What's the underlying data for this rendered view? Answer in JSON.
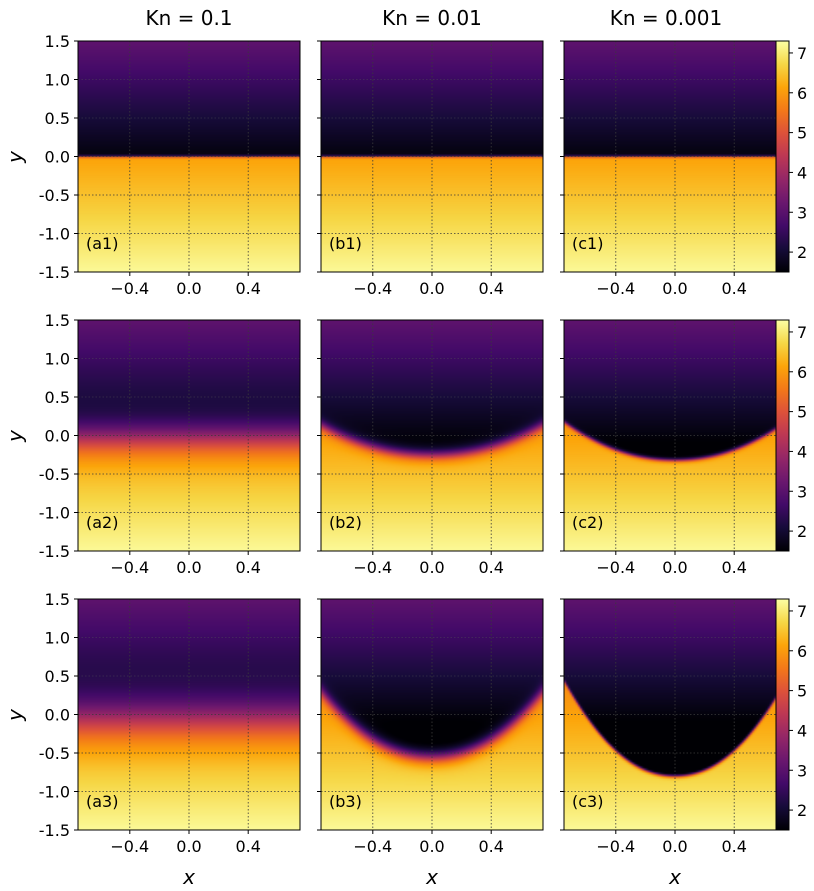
{
  "column_titles": [
    "Kn = 0.1",
    "Kn = 0.01",
    "Kn = 0.001"
  ],
  "colors": {
    "colormap": "inferno",
    "grid": "#3a3a3a",
    "frame": "#000000"
  },
  "chart_data": {
    "type": "heatmap",
    "description_free": true,
    "x_axis": {
      "label": "x",
      "ticks": [
        -0.4,
        0.0,
        0.4
      ],
      "tick_labels": [
        "−0.4",
        "0.0",
        "0.4"
      ],
      "range": [
        -0.75,
        0.75
      ]
    },
    "y_axis": {
      "label": "y",
      "ticks": [
        1.5,
        1.0,
        0.5,
        0.0,
        -0.5,
        -1.0,
        -1.5
      ],
      "tick_labels": [
        "1.5",
        "1.0",
        "0.5",
        "0.0",
        "-0.5",
        "-1.0",
        "-1.5"
      ],
      "range": [
        -1.5,
        1.5
      ]
    },
    "colorbar": {
      "range": [
        1.5,
        7.3
      ],
      "ticks": [
        2,
        3,
        4,
        5,
        6,
        7
      ],
      "tick_labels": [
        "2",
        "3",
        "4",
        "5",
        "6",
        "7"
      ]
    },
    "grid": true,
    "panels": [
      {
        "label": "(a1)",
        "row": 0,
        "col": 0,
        "kn": 0.1,
        "amp": 0.0,
        "tilt": 0.0,
        "width": 0.03
      },
      {
        "label": "(b1)",
        "row": 0,
        "col": 1,
        "kn": 0.01,
        "amp": 0.0,
        "tilt": 0.0,
        "width": 0.03
      },
      {
        "label": "(c1)",
        "row": 0,
        "col": 2,
        "kn": 0.001,
        "amp": 0.0,
        "tilt": 0.0,
        "width": 0.03
      },
      {
        "label": "(a2)",
        "row": 1,
        "col": 0,
        "kn": 0.1,
        "amp": 0.0,
        "tilt": 0.0,
        "width": 0.55
      },
      {
        "label": "(b2)",
        "row": 1,
        "col": 1,
        "kn": 0.01,
        "amp": 0.25,
        "tilt": 0.0,
        "width": 0.18
      },
      {
        "label": "(c2)",
        "row": 1,
        "col": 2,
        "kn": 0.001,
        "amp": 0.32,
        "tilt": 0.0,
        "width": 0.06
      },
      {
        "label": "(a3)",
        "row": 2,
        "col": 0,
        "kn": 0.1,
        "amp": 0.0,
        "tilt": 0.0,
        "width": 0.75
      },
      {
        "label": "(b3)",
        "row": 2,
        "col": 1,
        "kn": 0.01,
        "amp": 0.55,
        "tilt": 0.0,
        "width": 0.22
      },
      {
        "label": "(c3)",
        "row": 2,
        "col": 2,
        "kn": 0.001,
        "amp": 0.8,
        "tilt": 0.0,
        "width": 0.05
      }
    ]
  }
}
